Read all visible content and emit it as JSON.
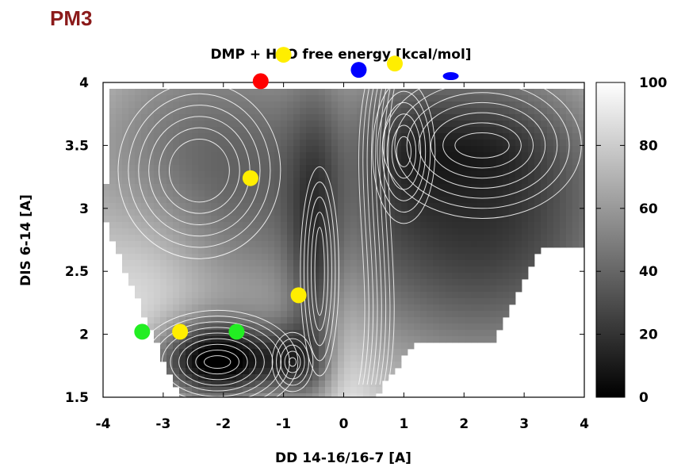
{
  "heading": "PM3",
  "chart_data": {
    "type": "heatmap",
    "title": "DMP + H2O free energy [kcal/mol]",
    "xlabel": "DD 14-16/16-7 [A]",
    "ylabel": "DIS 6-14 [A]",
    "xlim": [
      -4,
      4
    ],
    "ylim": [
      1.5,
      4
    ],
    "x_ticks": [
      "-4",
      "-3",
      "-2",
      "-1",
      "0",
      "1",
      "2",
      "3",
      "4"
    ],
    "y_ticks": [
      "1.5",
      "2",
      "2.5",
      "3",
      "3.5",
      "4"
    ],
    "colorbar": {
      "range": [
        0,
        100
      ],
      "ticks": [
        "0",
        "20",
        "40",
        "60",
        "80",
        "100"
      ],
      "colormap": "grayscale",
      "low_color": "#000000",
      "high_color": "#ffffff"
    },
    "contours": "white",
    "minima": [
      {
        "x": -2.2,
        "y": 1.73,
        "depth": 3
      },
      {
        "x": -0.85,
        "y": 1.75,
        "depth": 6
      },
      {
        "x": 0.95,
        "y": 3.5,
        "depth": 4
      },
      {
        "x": 2.2,
        "y": 3.52,
        "depth": 2
      }
    ],
    "markers": [
      {
        "x": -3.35,
        "y": 2.02,
        "color": "#22ee22"
      },
      {
        "x": -2.72,
        "y": 2.02,
        "color": "#ffee00"
      },
      {
        "x": -1.78,
        "y": 2.02,
        "color": "#22ee22"
      },
      {
        "x": -0.75,
        "y": 2.31,
        "color": "#ffee00"
      },
      {
        "x": -1.55,
        "y": 3.24,
        "color": "#ffee00"
      },
      {
        "x": -1.38,
        "y": 4.01,
        "color": "#ff0000"
      },
      {
        "x": -1.0,
        "y": 4.22,
        "color": "#ffee00"
      },
      {
        "x": 0.25,
        "y": 4.1,
        "color": "#0000ff"
      },
      {
        "x": 0.85,
        "y": 4.15,
        "color": "#ffee00"
      },
      {
        "x": 1.78,
        "y": 4.05,
        "color": "#0000ff",
        "shape": "ellipse"
      }
    ]
  }
}
